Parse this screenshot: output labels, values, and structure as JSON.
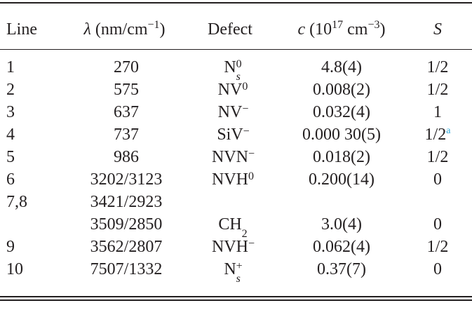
{
  "table": {
    "headers": {
      "line": "Line",
      "lambda_symbol": "λ",
      "lambda_unit_open": " (nm/cm",
      "lambda_unit_exp": "−1",
      "lambda_unit_close": ")",
      "defect": "Defect",
      "c_symbol": "c",
      "c_unit_open": " (10",
      "c_unit_exp1": "17",
      "c_unit_mid": " cm",
      "c_unit_exp2": "−3",
      "c_unit_close": ")",
      "spin": "S"
    },
    "rows": [
      {
        "line": "1",
        "lambda": "270",
        "defect_base": "N",
        "defect_sup": "0",
        "defect_sub": "s",
        "c": "4.8(4)",
        "s": "1/2",
        "s_note": ""
      },
      {
        "line": "2",
        "lambda": "575",
        "defect_base": "NV",
        "defect_sup": "0",
        "defect_sub": "",
        "c": "0.008(2)",
        "s": "1/2",
        "s_note": ""
      },
      {
        "line": "3",
        "lambda": "637",
        "defect_base": "NV",
        "defect_sup": "−",
        "defect_sub": "",
        "c": "0.032(4)",
        "s": "1",
        "s_note": ""
      },
      {
        "line": "4",
        "lambda": "737",
        "defect_base": "SiV",
        "defect_sup": "−",
        "defect_sub": "",
        "c": "0.000 30(5)",
        "s": "1/2",
        "s_note": "a"
      },
      {
        "line": "5",
        "lambda": "986",
        "defect_base": "NVN",
        "defect_sup": "−",
        "defect_sub": "",
        "c": "0.018(2)",
        "s": "1/2",
        "s_note": ""
      },
      {
        "line": "6",
        "lambda": "3202/3123",
        "defect_base": "NVH",
        "defect_sup": "0",
        "defect_sub": "",
        "c": "0.200(14)",
        "s": "0",
        "s_note": ""
      },
      {
        "line": "7,8",
        "lambda": "3421/2923",
        "defect_base": "",
        "defect_sup": "",
        "defect_sub": "",
        "c": "",
        "s": "",
        "s_note": ""
      },
      {
        "line": "",
        "lambda": "3509/2850",
        "defect_base": "CH",
        "defect_sup": "",
        "defect_sub": "2",
        "c": "3.0(4)",
        "s": "0",
        "s_note": ""
      },
      {
        "line": "9",
        "lambda": "3562/2807",
        "defect_base": "NVH",
        "defect_sup": "−",
        "defect_sub": "",
        "c": "0.062(4)",
        "s": "1/2",
        "s_note": ""
      },
      {
        "line": "10",
        "lambda": "7507/1332",
        "defect_base": "N",
        "defect_sup": "+",
        "defect_sub": "s",
        "c": "0.37(7)",
        "s": "0",
        "s_note": ""
      }
    ]
  }
}
